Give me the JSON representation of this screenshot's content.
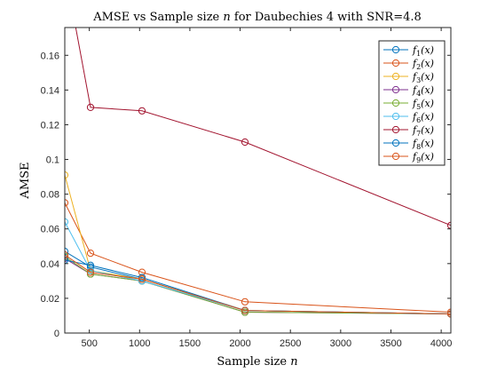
{
  "chart_data": {
    "type": "line",
    "title_main": "AMSE vs Sample size ",
    "title_var": "n",
    "title_rest": " for Daubechies 4 with SNR=4.8",
    "xlabel_main": "Sample size ",
    "xlabel_var": "n",
    "ylabel": "AMSE",
    "xlim": [
      256,
      4096
    ],
    "ylim": [
      0,
      0.176
    ],
    "xticks": [
      500,
      1000,
      1500,
      2000,
      2500,
      3000,
      3500,
      4000
    ],
    "yticks": [
      0,
      0.02,
      0.04,
      0.06,
      0.08,
      0.1,
      0.12,
      0.14,
      0.16
    ],
    "ytick_labels": [
      "0",
      "0.02",
      "0.04",
      "0.06",
      "0.08",
      "0.1",
      "0.12",
      "0.14",
      "0.16"
    ],
    "x": [
      256,
      512,
      1024,
      2048,
      4096
    ],
    "grid": false,
    "legend_position": "top-right",
    "marker": "circle",
    "series": [
      {
        "name": "f1(x)",
        "sub": "1",
        "color": "#0072BD",
        "values": [
          0.047,
          0.038,
          0.031,
          0.013,
          0.011
        ]
      },
      {
        "name": "f2(x)",
        "sub": "2",
        "color": "#D95319",
        "values": [
          0.075,
          0.046,
          0.035,
          0.018,
          0.012
        ]
      },
      {
        "name": "f3(x)",
        "sub": "3",
        "color": "#EDB120",
        "values": [
          0.091,
          0.036,
          0.031,
          0.013,
          0.011
        ]
      },
      {
        "name": "f4(x)",
        "sub": "4",
        "color": "#7E2F8E",
        "values": [
          0.043,
          0.034,
          0.03,
          0.012,
          0.011
        ]
      },
      {
        "name": "f5(x)",
        "sub": "5",
        "color": "#77AC30",
        "values": [
          0.044,
          0.034,
          0.03,
          0.012,
          0.011
        ]
      },
      {
        "name": "f6(x)",
        "sub": "6",
        "color": "#4DBEEE",
        "values": [
          0.064,
          0.036,
          0.03,
          0.013,
          0.011
        ]
      },
      {
        "name": "f7(x)",
        "sub": "7",
        "color": "#A2142F",
        "values": [
          0.21,
          0.13,
          0.128,
          0.11,
          0.062
        ]
      },
      {
        "name": "f8(x)",
        "sub": "8",
        "color": "#0072BD",
        "values": [
          0.042,
          0.039,
          0.032,
          0.013,
          0.011
        ]
      },
      {
        "name": "f9(x)",
        "sub": "9",
        "color": "#D95319",
        "values": [
          0.045,
          0.035,
          0.031,
          0.013,
          0.011
        ]
      }
    ]
  }
}
